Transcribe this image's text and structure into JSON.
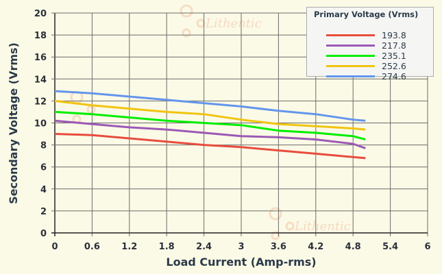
{
  "watermark": {
    "text": "Lithentic"
  },
  "chart_data": {
    "type": "line",
    "title": "",
    "xlabel": "Load Current (Amp-rms)",
    "ylabel": "Secondary Voltage (Vrms)",
    "xlim": [
      0,
      6
    ],
    "ylim": [
      0,
      20
    ],
    "xticks": [
      "0",
      "0.6",
      "1.2",
      "1.8",
      "2.4",
      "3",
      "3.6",
      "4.2",
      "4.8",
      "5.4",
      "6"
    ],
    "yticks": [
      "0",
      "2",
      "4",
      "6",
      "8",
      "10",
      "12",
      "14",
      "16",
      "18",
      "20"
    ],
    "grid": true,
    "legend_title": "Primary Voltage (Vrms)",
    "legend_position": "top-right",
    "x": [
      0,
      0.6,
      1.2,
      1.8,
      2.4,
      3.0,
      3.6,
      4.2,
      4.8,
      5.0
    ],
    "series": [
      {
        "name": "193.8",
        "color": "#e84c3d",
        "values": [
          9.0,
          8.9,
          8.6,
          8.3,
          8.0,
          7.8,
          7.5,
          7.2,
          6.9,
          6.8
        ]
      },
      {
        "name": "217.8",
        "color": "#9b59b6",
        "values": [
          10.2,
          9.9,
          9.6,
          9.4,
          9.1,
          8.8,
          8.7,
          8.5,
          8.1,
          7.7
        ]
      },
      {
        "name": "235.1",
        "color": "#00ee00",
        "values": [
          11.0,
          10.8,
          10.5,
          10.2,
          10.0,
          9.8,
          9.3,
          9.1,
          8.8,
          8.5
        ]
      },
      {
        "name": "252.6",
        "color": "#f1c40f",
        "values": [
          12.0,
          11.6,
          11.3,
          11.0,
          10.8,
          10.3,
          9.9,
          9.7,
          9.5,
          9.4
        ]
      },
      {
        "name": "274.6",
        "color": "#6495ed",
        "values": [
          12.9,
          12.7,
          12.4,
          12.1,
          11.8,
          11.5,
          11.1,
          10.8,
          10.3,
          10.2
        ]
      }
    ]
  }
}
